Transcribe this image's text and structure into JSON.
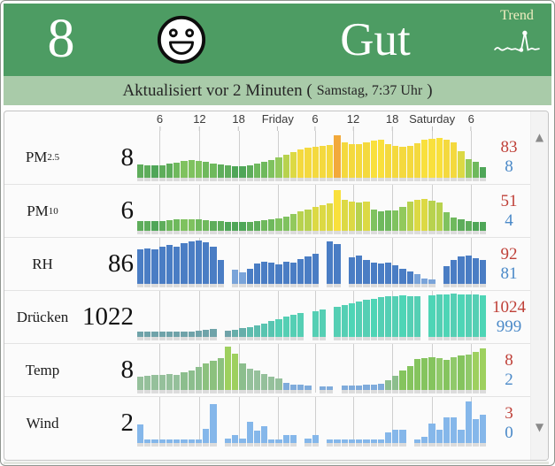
{
  "header": {
    "aqi_value": "8",
    "status_label": "Gut",
    "trend_label": "Trend",
    "updated_prefix": "Aktualisiert vor 2 Minuten (",
    "updated_detail": "Samstag, 7:37 Uhr",
    "updated_suffix": ")"
  },
  "colors": {
    "header_bg": "#4d9c63",
    "subheader_bg": "#a9cba9",
    "trend_label": "#f2eec2",
    "max_value": "#bf4038",
    "min_value": "#4a89c8",
    "gridline": "#cfcfcf",
    "bar_palette": {
      "g0": "#4fa658",
      "g1": "#5ead5b",
      "g2": "#6fb95d",
      "g3": "#7fc25f",
      "g4": "#92c95c",
      "y0": "#b8d24e",
      "y1": "#dcd944",
      "y2": "#f4d93e",
      "y3": "#f9e03c",
      "o": "#f2a93b",
      "b": "#4a7dc4",
      "bl": "#7aa4d9",
      "s0": "#6fa3a9",
      "s1": "#66aeaa",
      "s2": "#5dbcae",
      "s3": "#58c4b0",
      "t": "#55cfb4",
      "t2": "#4ed5b6",
      "sga": "#95c09b",
      "sgb": "#8cbe8d",
      "sgc": "#8cc17e",
      "brt": "#9ed05f",
      "grn": "#85c45e",
      "grb": "#90c96a",
      "blu": "#7fabdb",
      "w": "#85b7ea"
    }
  },
  "time_axis": {
    "ticks": [
      {
        "label": "6",
        "pos": 6.9
      },
      {
        "label": "12",
        "pos": 18.2
      },
      {
        "label": "18",
        "pos": 29.3
      },
      {
        "label": "Friday",
        "pos": 40.4
      },
      {
        "label": "6",
        "pos": 51.0
      },
      {
        "label": "12",
        "pos": 61.8
      },
      {
        "label": "18",
        "pos": 72.9
      },
      {
        "label": "Saturday",
        "pos": 84.2
      },
      {
        "label": "6",
        "pos": 95.3
      }
    ]
  },
  "scrollbar": {
    "up_icon": "▲",
    "down_icon": "▼"
  },
  "rows": [
    {
      "id": "pm25",
      "param": "PM",
      "param_sub": "2.5",
      "current": "8",
      "max": "83",
      "min": "8",
      "chart_type": "bar",
      "values": [
        0.3,
        0.29,
        0.28,
        0.29,
        0.32,
        0.35,
        0.38,
        0.4,
        0.39,
        0.36,
        0.32,
        0.3,
        0.28,
        0.27,
        0.27,
        0.29,
        0.33,
        0.37,
        0.41,
        0.46,
        0.52,
        0.58,
        0.64,
        0.68,
        0.7,
        0.72,
        0.74,
        0.97,
        0.8,
        0.77,
        0.76,
        0.8,
        0.85,
        0.87,
        0.76,
        0.72,
        0.7,
        0.73,
        0.78,
        0.86,
        0.89,
        0.9,
        0.87,
        0.8,
        0.6,
        0.42,
        0.36,
        0.25
      ],
      "bar_colors": [
        "g1",
        "g1",
        "g0",
        "g1",
        "g1",
        "g2",
        "g3",
        "g3",
        "g3",
        "g2",
        "g2",
        "g1",
        "g1",
        "g0",
        "g0",
        "g1",
        "g2",
        "g2",
        "g3",
        "g4",
        "y0",
        "y1",
        "y2",
        "y2",
        "y2",
        "y2",
        "y2",
        "o",
        "y2",
        "y2",
        "y2",
        "y2",
        "y3",
        "y3",
        "y2",
        "y2",
        "y2",
        "y2",
        "y2",
        "y3",
        "y3",
        "y3",
        "y2",
        "y2",
        "y1",
        "g4",
        "g2",
        "g0"
      ]
    },
    {
      "id": "pm10",
      "param": "PM",
      "param_sub": "10",
      "current": "6",
      "max": "51",
      "min": "4",
      "chart_type": "bar",
      "values": [
        0.22,
        0.22,
        0.22,
        0.23,
        0.24,
        0.26,
        0.27,
        0.27,
        0.26,
        0.24,
        0.23,
        0.22,
        0.21,
        0.21,
        0.21,
        0.21,
        0.22,
        0.24,
        0.26,
        0.29,
        0.33,
        0.38,
        0.44,
        0.5,
        0.55,
        0.6,
        0.64,
        0.93,
        0.72,
        0.68,
        0.65,
        0.68,
        0.5,
        0.44,
        0.46,
        0.47,
        0.55,
        0.68,
        0.72,
        0.73,
        0.7,
        0.65,
        0.42,
        0.3,
        0.26,
        0.23,
        0.2,
        0.2
      ],
      "bar_colors": [
        "g1",
        "g1",
        "g0",
        "g1",
        "g2",
        "g2",
        "g3",
        "g3",
        "g2",
        "g2",
        "g1",
        "g1",
        "g0",
        "g0",
        "g0",
        "g1",
        "g1",
        "g2",
        "g2",
        "g3",
        "g3",
        "g4",
        "y0",
        "y0",
        "y1",
        "y1",
        "y1",
        "y3",
        "y1",
        "y1",
        "y0",
        "y1",
        "g3",
        "g2",
        "g2",
        "g3",
        "g4",
        "y0",
        "y1",
        "y1",
        "y0",
        "y0",
        "g3",
        "g2",
        "g1",
        "g1",
        "g0",
        "g0"
      ]
    },
    {
      "id": "rh",
      "param": "RH",
      "param_sub": "",
      "current": "86",
      "max": "92",
      "min": "81",
      "chart_type": "bar",
      "values": [
        0.8,
        0.82,
        0.8,
        0.86,
        0.9,
        0.86,
        0.93,
        0.97,
        1.0,
        0.96,
        0.85,
        0.55,
        null,
        0.32,
        0.27,
        0.35,
        0.47,
        0.52,
        0.5,
        0.44,
        0.52,
        0.5,
        0.57,
        0.64,
        0.7,
        null,
        0.97,
        0.92,
        null,
        0.62,
        0.66,
        0.56,
        0.5,
        0.46,
        0.48,
        0.42,
        0.34,
        0.28,
        0.22,
        0.12,
        0.1,
        null,
        0.4,
        0.55,
        0.63,
        0.66,
        0.6,
        0.55
      ],
      "bar_colors": [
        "b",
        "b",
        "b",
        "b",
        "b",
        "b",
        "b",
        "b",
        "b",
        "b",
        "b",
        "b",
        "b",
        "bl",
        "bl",
        "b",
        "b",
        "b",
        "b",
        "b",
        "b",
        "b",
        "b",
        "b",
        "b",
        "b",
        "b",
        "b",
        "b",
        "b",
        "b",
        "b",
        "b",
        "b",
        "b",
        "b",
        "b",
        "b",
        "bl",
        "bl",
        "bl",
        "b",
        "b",
        "b",
        "b",
        "b",
        "b",
        "b"
      ]
    },
    {
      "id": "druecken",
      "param": "Drücken",
      "param_sub": "",
      "current": "1022",
      "max": "1024",
      "min": "999",
      "chart_type": "bar",
      "values": [
        0.13,
        0.13,
        0.12,
        0.13,
        0.13,
        0.12,
        0.13,
        0.13,
        0.14,
        0.16,
        0.18,
        null,
        0.15,
        0.17,
        0.2,
        0.23,
        0.27,
        0.31,
        0.36,
        0.41,
        0.46,
        0.51,
        0.56,
        null,
        0.6,
        0.63,
        null,
        0.7,
        0.74,
        0.78,
        0.82,
        0.85,
        0.88,
        0.91,
        0.93,
        0.94,
        0.95,
        0.94,
        0.93,
        null,
        0.95,
        0.97,
        0.99,
        1.0,
        0.99,
        0.98,
        0.97,
        0.95
      ],
      "bar_colors": [
        "s0",
        "s0",
        "s0",
        "s0",
        "s0",
        "s0",
        "s0",
        "s0",
        "s0",
        "s0",
        "s0",
        "s0",
        "s0",
        "s1",
        "s1",
        "s2",
        "s2",
        "s3",
        "s3",
        "t",
        "t",
        "t",
        "t",
        "t",
        "t",
        "t",
        "t",
        "t",
        "t",
        "t2",
        "t",
        "t",
        "t2",
        "t",
        "t",
        "t",
        "t2",
        "t",
        "t",
        "t",
        "t2",
        "t",
        "t2",
        "t",
        "t2",
        "t",
        "t",
        "t2"
      ]
    },
    {
      "id": "temp",
      "param": "Temp",
      "param_sub": "",
      "current": "8",
      "max": "8",
      "min": "2",
      "chart_type": "bar",
      "values": [
        0.3,
        0.32,
        0.34,
        0.34,
        0.37,
        0.35,
        0.4,
        0.45,
        0.54,
        0.61,
        0.67,
        0.74,
        1.0,
        0.84,
        0.62,
        0.5,
        0.44,
        0.37,
        0.31,
        0.26,
        0.16,
        0.13,
        0.12,
        0.1,
        null,
        0.08,
        0.08,
        null,
        0.1,
        0.1,
        0.1,
        0.12,
        0.12,
        0.15,
        0.22,
        0.33,
        0.44,
        0.55,
        0.72,
        0.74,
        0.76,
        0.73,
        0.7,
        0.76,
        0.79,
        0.82,
        0.87,
        0.95
      ],
      "bar_colors": [
        "sga",
        "sga",
        "sga",
        "sga",
        "sga",
        "sga",
        "sgb",
        "sgb",
        "sgb",
        "sgc",
        "sgc",
        "sgc",
        "brt",
        "brt",
        "sgb",
        "sga",
        "sga",
        "sga",
        "sga",
        "sga",
        "blu",
        "blu",
        "blu",
        "blu",
        "blu",
        "blu",
        "blu",
        "blu",
        "blu",
        "blu",
        "blu",
        "blu",
        "blu",
        "blu",
        "sgb",
        "sgb",
        "grn",
        "grn",
        "grn",
        "grn",
        "grn",
        "grb",
        "grn",
        "grb",
        "grn",
        "grb",
        "brt",
        "brt"
      ]
    },
    {
      "id": "wind",
      "param": "Wind",
      "param_sub": "",
      "current": "2",
      "max": "3",
      "min": "0",
      "chart_type": "bar",
      "values": [
        0.42,
        0.08,
        0.08,
        0.08,
        0.08,
        0.08,
        0.08,
        0.08,
        0.08,
        0.33,
        0.9,
        null,
        0.1,
        0.18,
        0.1,
        0.48,
        0.28,
        0.38,
        0.08,
        0.08,
        0.18,
        0.18,
        null,
        0.1,
        0.18,
        null,
        0.08,
        0.08,
        0.08,
        0.08,
        0.08,
        0.08,
        0.08,
        0.08,
        0.25,
        0.3,
        0.3,
        null,
        0.08,
        0.15,
        0.45,
        0.3,
        0.6,
        0.6,
        0.3,
        0.95,
        0.55,
        0.65
      ],
      "bar_colors": [
        "w",
        "w",
        "w",
        "w",
        "w",
        "w",
        "w",
        "w",
        "w",
        "w",
        "w",
        "w",
        "w",
        "w",
        "w",
        "w",
        "w",
        "w",
        "w",
        "w",
        "w",
        "w",
        "w",
        "w",
        "w",
        "w",
        "w",
        "w",
        "w",
        "w",
        "w",
        "w",
        "w",
        "w",
        "w",
        "w",
        "w",
        "w",
        "w",
        "w",
        "w",
        "w",
        "w",
        "w",
        "w",
        "w",
        "w",
        "w"
      ]
    }
  ]
}
